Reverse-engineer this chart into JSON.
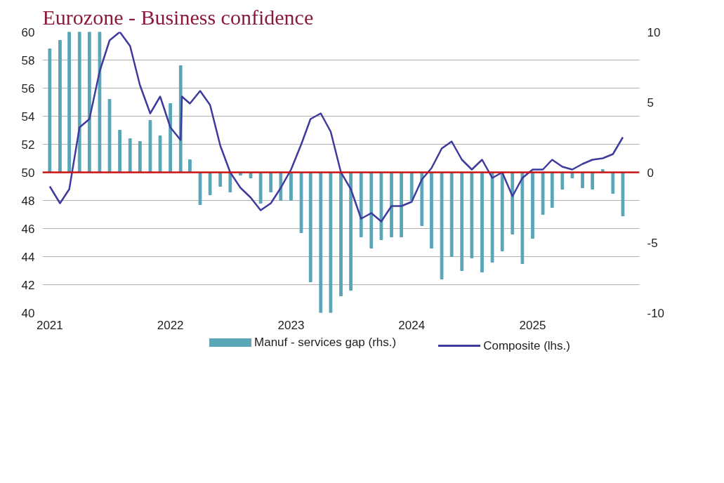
{
  "chart_data": {
    "type": "bar",
    "title": "Eurozone - Business confidence",
    "x": [
      "2021-01",
      "2021-02",
      "2021-03",
      "2021-04",
      "2021-05",
      "2021-06",
      "2021-07",
      "2021-08",
      "2021-09",
      "2021-10",
      "2021-11",
      "2021-12",
      "2022-01",
      "2022-02",
      "2022-03",
      "2022-04",
      "2022-05",
      "2022-06",
      "2022-07",
      "2022-08",
      "2022-09",
      "2022-10",
      "2022-11",
      "2022-12",
      "2023-01",
      "2023-02",
      "2023-03",
      "2023-04",
      "2023-05",
      "2023-06",
      "2023-07",
      "2023-08",
      "2023-09",
      "2023-10",
      "2023-11",
      "2023-12",
      "2024-01",
      "2024-02",
      "2024-03",
      "2024-04",
      "2024-05",
      "2024-06",
      "2024-07",
      "2024-08",
      "2024-09",
      "2024-10",
      "2024-11",
      "2024-12",
      "2025-01",
      "2025-02",
      "2025-03",
      "2025-04",
      "2025-05",
      "2025-06",
      "2025-07",
      "2025-08",
      "2025-09",
      "2025-10"
    ],
    "series": [
      {
        "name": "Manuf - services gap (rhs.)",
        "axis": "y2",
        "color": "#5aa5b8",
        "values": [
          8.8,
          9.4,
          10,
          10,
          10,
          10,
          5.2,
          3.0,
          2.4,
          2.2,
          3.7,
          2.6,
          4.9,
          7.6,
          0.9,
          -2.3,
          -1.6,
          -1.0,
          -1.4,
          -0.2,
          -0.4,
          -2.2,
          -1.4,
          -2.0,
          -2.0,
          -4.3,
          -7.8,
          -10,
          -10,
          -8.8,
          -8.4,
          -4.6,
          -5.4,
          -4.8,
          -4.6,
          -4.6,
          -2.0,
          -3.8,
          -5.4,
          -7.6,
          -6.0,
          -7.0,
          -6.1,
          -7.1,
          -6.4,
          -5.6,
          -4.4,
          -6.5,
          -4.7,
          -3.0,
          -2.5,
          -1.2,
          -0.4,
          -1.1,
          -1.2,
          0.2,
          -1.5,
          -3.1
        ]
      },
      {
        "name": "Composite (lhs.)",
        "type": "line",
        "color": "#3f3a9e",
        "x": [
          "2021-01",
          "2021-02",
          "2021-03",
          "2021-04",
          "2021-05",
          "2021-06",
          "2021-07",
          "2021-08",
          "2021-09",
          "2021-10",
          "2021-11",
          "2021-12",
          "2022-01",
          "2022-02",
          "2022-02-05",
          "2022-03",
          "2022-04",
          "2022-05",
          "2022-06",
          "2022-07",
          "2022-08",
          "2022-09",
          "2022-10",
          "2022-11",
          "2022-12",
          "2023-01",
          "2023-02",
          "2023-03",
          "2023-04",
          "2023-05",
          "2023-06",
          "2023-07",
          "2023-08",
          "2023-09",
          "2023-10",
          "2023-11",
          "2023-12",
          "2024-01",
          "2024-02",
          "2024-03",
          "2024-04",
          "2024-05",
          "2024-06",
          "2024-07",
          "2024-08",
          "2024-09",
          "2024-10",
          "2024-11",
          "2024-12",
          "2025-01",
          "2025-02",
          "2025-03",
          "2025-04",
          "2025-05",
          "2025-06",
          "2025-07",
          "2025-08",
          "2025-09",
          "2025-10"
        ],
        "values": [
          49.0,
          47.8,
          48.8,
          53.2,
          53.8,
          57.2,
          59.4,
          60.0,
          59.0,
          56.2,
          54.2,
          55.4,
          53.2,
          52.3,
          55.4,
          54.9,
          55.8,
          54.8,
          51.9,
          50.0,
          48.9,
          48.2,
          47.3,
          47.8,
          48.9,
          50.2,
          52.0,
          53.8,
          54.2,
          52.9,
          50.0,
          48.8,
          46.7,
          47.1,
          46.5,
          47.6,
          47.6,
          47.9,
          49.5,
          50.3,
          51.7,
          52.2,
          50.9,
          50.2,
          50.9,
          49.6,
          50.0,
          48.3,
          49.6,
          50.2,
          50.2,
          50.9,
          50.4,
          50.2,
          50.6,
          50.9,
          51.0,
          51.3,
          52.5
        ]
      }
    ],
    "xlim": [
      "2020-12-10",
      "2025-11-20"
    ],
    "xticks": [
      "2021",
      "2022",
      "2023",
      "2024",
      "2025"
    ],
    "ylim": [
      40,
      60
    ],
    "yticks": [
      40,
      42,
      44,
      46,
      48,
      50,
      52,
      54,
      56,
      58,
      60
    ],
    "y2lim": [
      -10,
      10
    ],
    "y2ticks": [
      -10,
      -5,
      0,
      5,
      10
    ],
    "ref_lines": [
      {
        "axis": "y",
        "value": 50,
        "color": "#cc1111"
      }
    ],
    "grid": "y",
    "legend": "bottom"
  }
}
